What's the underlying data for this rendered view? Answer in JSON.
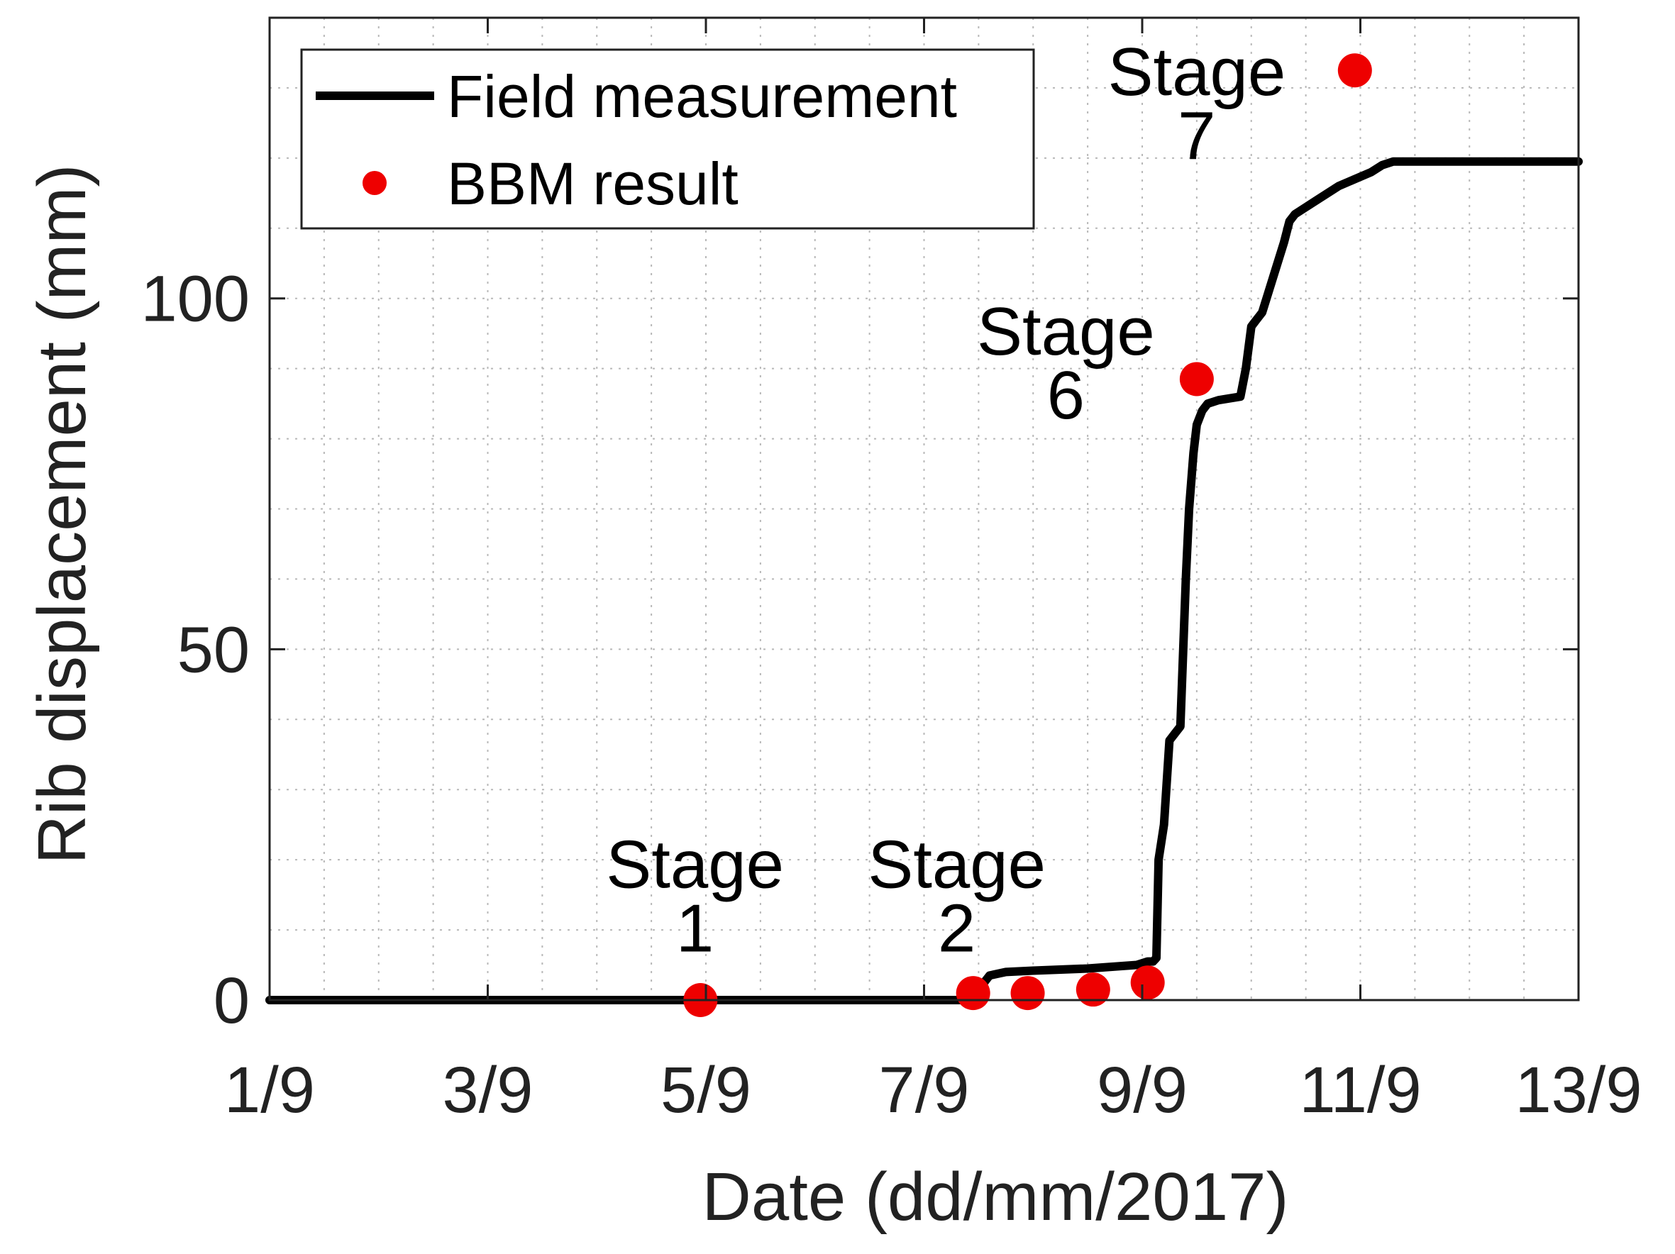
{
  "chart_data": {
    "type": "line",
    "xlabel": "Date (dd/mm/2017)",
    "ylabel": "Rib displacement (mm)",
    "xlim": [
      1,
      13
    ],
    "ylim": [
      0,
      140
    ],
    "x_ticks": [
      {
        "value": 1,
        "label": "1/9"
      },
      {
        "value": 3,
        "label": "3/9"
      },
      {
        "value": 5,
        "label": "5/9"
      },
      {
        "value": 7,
        "label": "7/9"
      },
      {
        "value": 9,
        "label": "9/9"
      },
      {
        "value": 11,
        "label": "11/9"
      },
      {
        "value": 13,
        "label": "13/9"
      }
    ],
    "y_ticks": [
      {
        "value": 0,
        "label": "0"
      },
      {
        "value": 50,
        "label": "50"
      },
      {
        "value": 100,
        "label": "100"
      }
    ],
    "x_minor_grid": [
      1.5,
      2,
      2.5,
      3.5,
      4,
      4.5,
      5.5,
      6,
      6.5,
      7.5,
      8,
      8.5,
      9.5,
      10,
      10.5,
      11.5,
      12,
      12.5
    ],
    "y_minor_grid": [
      10,
      20,
      30,
      40,
      60,
      70,
      80,
      90,
      110,
      120,
      130
    ],
    "grid": true,
    "legend_position": "top-left",
    "series": [
      {
        "name": "Field measurement",
        "style": "line",
        "color": "#000000",
        "x": [
          1,
          3,
          5,
          7,
          7.45,
          7.52,
          7.55,
          7.6,
          7.75,
          8.0,
          8.5,
          8.95,
          9.05,
          9.1,
          9.13,
          9.15,
          9.2,
          9.25,
          9.3,
          9.35,
          9.4,
          9.43,
          9.47,
          9.5,
          9.55,
          9.6,
          9.7,
          9.9,
          9.95,
          10.0,
          10.05,
          10.1,
          10.2,
          10.3,
          10.35,
          10.4,
          10.5,
          10.6,
          10.8,
          10.95,
          11.1,
          11.2,
          11.3,
          13
        ],
        "y": [
          0,
          0,
          0,
          0,
          0,
          0.5,
          2.5,
          3.5,
          4,
          4.2,
          4.5,
          5,
          5.5,
          5.5,
          6,
          20,
          25,
          37,
          38,
          39,
          60,
          70,
          78,
          82,
          84,
          85,
          85.5,
          86,
          90,
          96,
          97,
          98,
          103,
          108,
          111,
          112,
          113,
          114,
          116,
          117,
          118,
          119,
          119.5,
          119.5
        ]
      },
      {
        "name": "BBM result",
        "style": "markers",
        "color": "#ee0000",
        "x": [
          4.95,
          7.45,
          7.95,
          8.55,
          9.05,
          9.5,
          10.95
        ],
        "y": [
          0,
          1,
          1,
          1.5,
          2.5,
          88.5,
          132.5
        ]
      }
    ],
    "annotations": [
      {
        "line1": "Stage",
        "line2": "1",
        "x": 4.9,
        "y": 16
      },
      {
        "line1": "Stage",
        "line2": "2",
        "x": 7.3,
        "y": 16
      },
      {
        "line1": "Stage",
        "line2": "6",
        "x": 8.3,
        "y": 92
      },
      {
        "line1": "Stage",
        "line2": "7",
        "x": 9.5,
        "y": 129
      }
    ]
  }
}
